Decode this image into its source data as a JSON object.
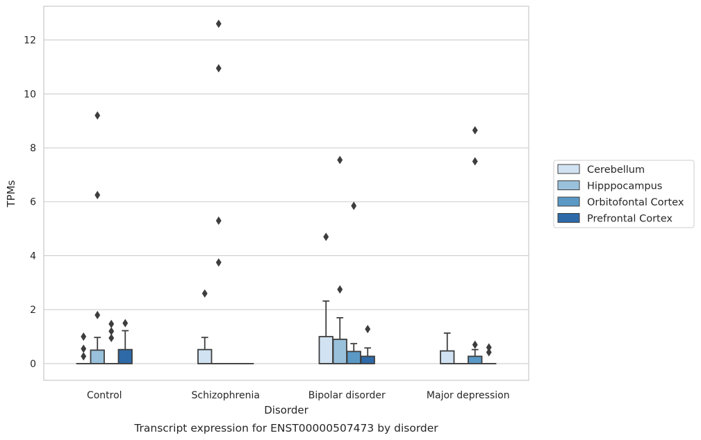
{
  "chart_data": {
    "type": "box",
    "xlabel": "Disorder",
    "ylabel": "TPMs",
    "caption": "Transcript expression for ENST00000507473 by disorder",
    "ylim": [
      -0.62,
      13.25
    ],
    "yticks": [
      0,
      2,
      4,
      6,
      8,
      10,
      12
    ],
    "grid": "horizontal",
    "legend_position": "right",
    "categories": [
      "Control",
      "Schizophrenia",
      "Bipolar disorder",
      "Major depression"
    ],
    "series": [
      {
        "name": "Cerebellum",
        "color": "#d1e2f2",
        "boxes": [
          {
            "q1": 0,
            "median": 0,
            "q3": 0,
            "whisker_low": 0,
            "whisker_high": 0,
            "outliers": [
              0.27,
              0.55,
              1.0
            ]
          },
          {
            "q1": 0,
            "median": 0,
            "q3": 0.52,
            "whisker_low": 0,
            "whisker_high": 0.97,
            "outliers": [
              2.6
            ]
          },
          {
            "q1": 0,
            "median": 0,
            "q3": 1.0,
            "whisker_low": 0,
            "whisker_high": 2.32,
            "outliers": [
              4.7
            ]
          },
          {
            "q1": 0,
            "median": 0,
            "q3": 0.47,
            "whisker_low": 0,
            "whisker_high": 1.13,
            "outliers": []
          }
        ]
      },
      {
        "name": "Hipppocampus",
        "color": "#9ac1db",
        "boxes": [
          {
            "q1": 0,
            "median": 0,
            "q3": 0.5,
            "whisker_low": 0,
            "whisker_high": 0.97,
            "outliers": [
              1.8,
              6.25,
              9.2
            ]
          },
          {
            "q1": 0,
            "median": 0,
            "q3": 0,
            "whisker_low": 0,
            "whisker_high": 0,
            "outliers": [
              3.75,
              5.3,
              10.95,
              12.6
            ]
          },
          {
            "q1": 0,
            "median": 0,
            "q3": 0.9,
            "whisker_low": 0,
            "whisker_high": 1.7,
            "outliers": [
              2.75,
              7.55
            ]
          },
          {
            "q1": 0,
            "median": 0,
            "q3": 0,
            "whisker_low": 0,
            "whisker_high": 0,
            "outliers": []
          }
        ]
      },
      {
        "name": "Orbitofontal Cortex",
        "color": "#5a99c6",
        "boxes": [
          {
            "q1": 0,
            "median": 0,
            "q3": 0,
            "whisker_low": 0,
            "whisker_high": 0,
            "outliers": [
              0.95,
              1.2,
              1.47
            ]
          },
          {
            "q1": 0,
            "median": 0,
            "q3": 0,
            "whisker_low": 0,
            "whisker_high": 0,
            "outliers": []
          },
          {
            "q1": 0,
            "median": 0,
            "q3": 0.45,
            "whisker_low": 0,
            "whisker_high": 0.74,
            "outliers": [
              5.85
            ]
          },
          {
            "q1": 0,
            "median": 0,
            "q3": 0.27,
            "whisker_low": 0,
            "whisker_high": 0.52,
            "outliers": [
              0.7,
              7.5,
              8.65
            ]
          }
        ]
      },
      {
        "name": "Prefrontal Cortex",
        "color": "#2e6aa8",
        "boxes": [
          {
            "q1": 0,
            "median": 0,
            "q3": 0.52,
            "whisker_low": 0,
            "whisker_high": 1.22,
            "outliers": [
              1.5
            ]
          },
          {
            "q1": 0,
            "median": 0,
            "q3": 0,
            "whisker_low": 0,
            "whisker_high": 0,
            "outliers": []
          },
          {
            "q1": 0,
            "median": 0,
            "q3": 0.27,
            "whisker_low": 0,
            "whisker_high": 0.58,
            "outliers": [
              1.28
            ]
          },
          {
            "q1": 0,
            "median": 0,
            "q3": 0,
            "whisker_low": 0,
            "whisker_high": 0,
            "outliers": [
              0.42,
              0.6
            ]
          }
        ]
      }
    ]
  }
}
